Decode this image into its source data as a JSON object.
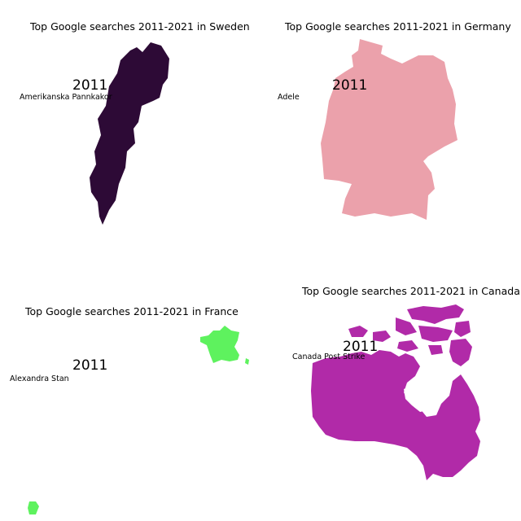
{
  "panels": [
    {
      "title": "Top Google searches 2011-2021 in Sweden",
      "country": "Sweden",
      "year": "2011",
      "term": "Amerikanska Pannkakor",
      "fill": "#2d0a36"
    },
    {
      "title": "Top Google searches 2011-2021 in Germany",
      "country": "Germany",
      "year": "2011",
      "term": "Adele",
      "fill": "#eba1ab"
    },
    {
      "title": "Top Google searches 2011-2021 in France",
      "country": "France",
      "year": "2011",
      "term": "Alexandra Stan",
      "fill": "#5ef25e"
    },
    {
      "title": "Top Google searches 2011-2021 in Canada",
      "country": "Canada",
      "year": "2011",
      "term": "Canada Post Strike",
      "fill": "#b12aa8"
    }
  ]
}
